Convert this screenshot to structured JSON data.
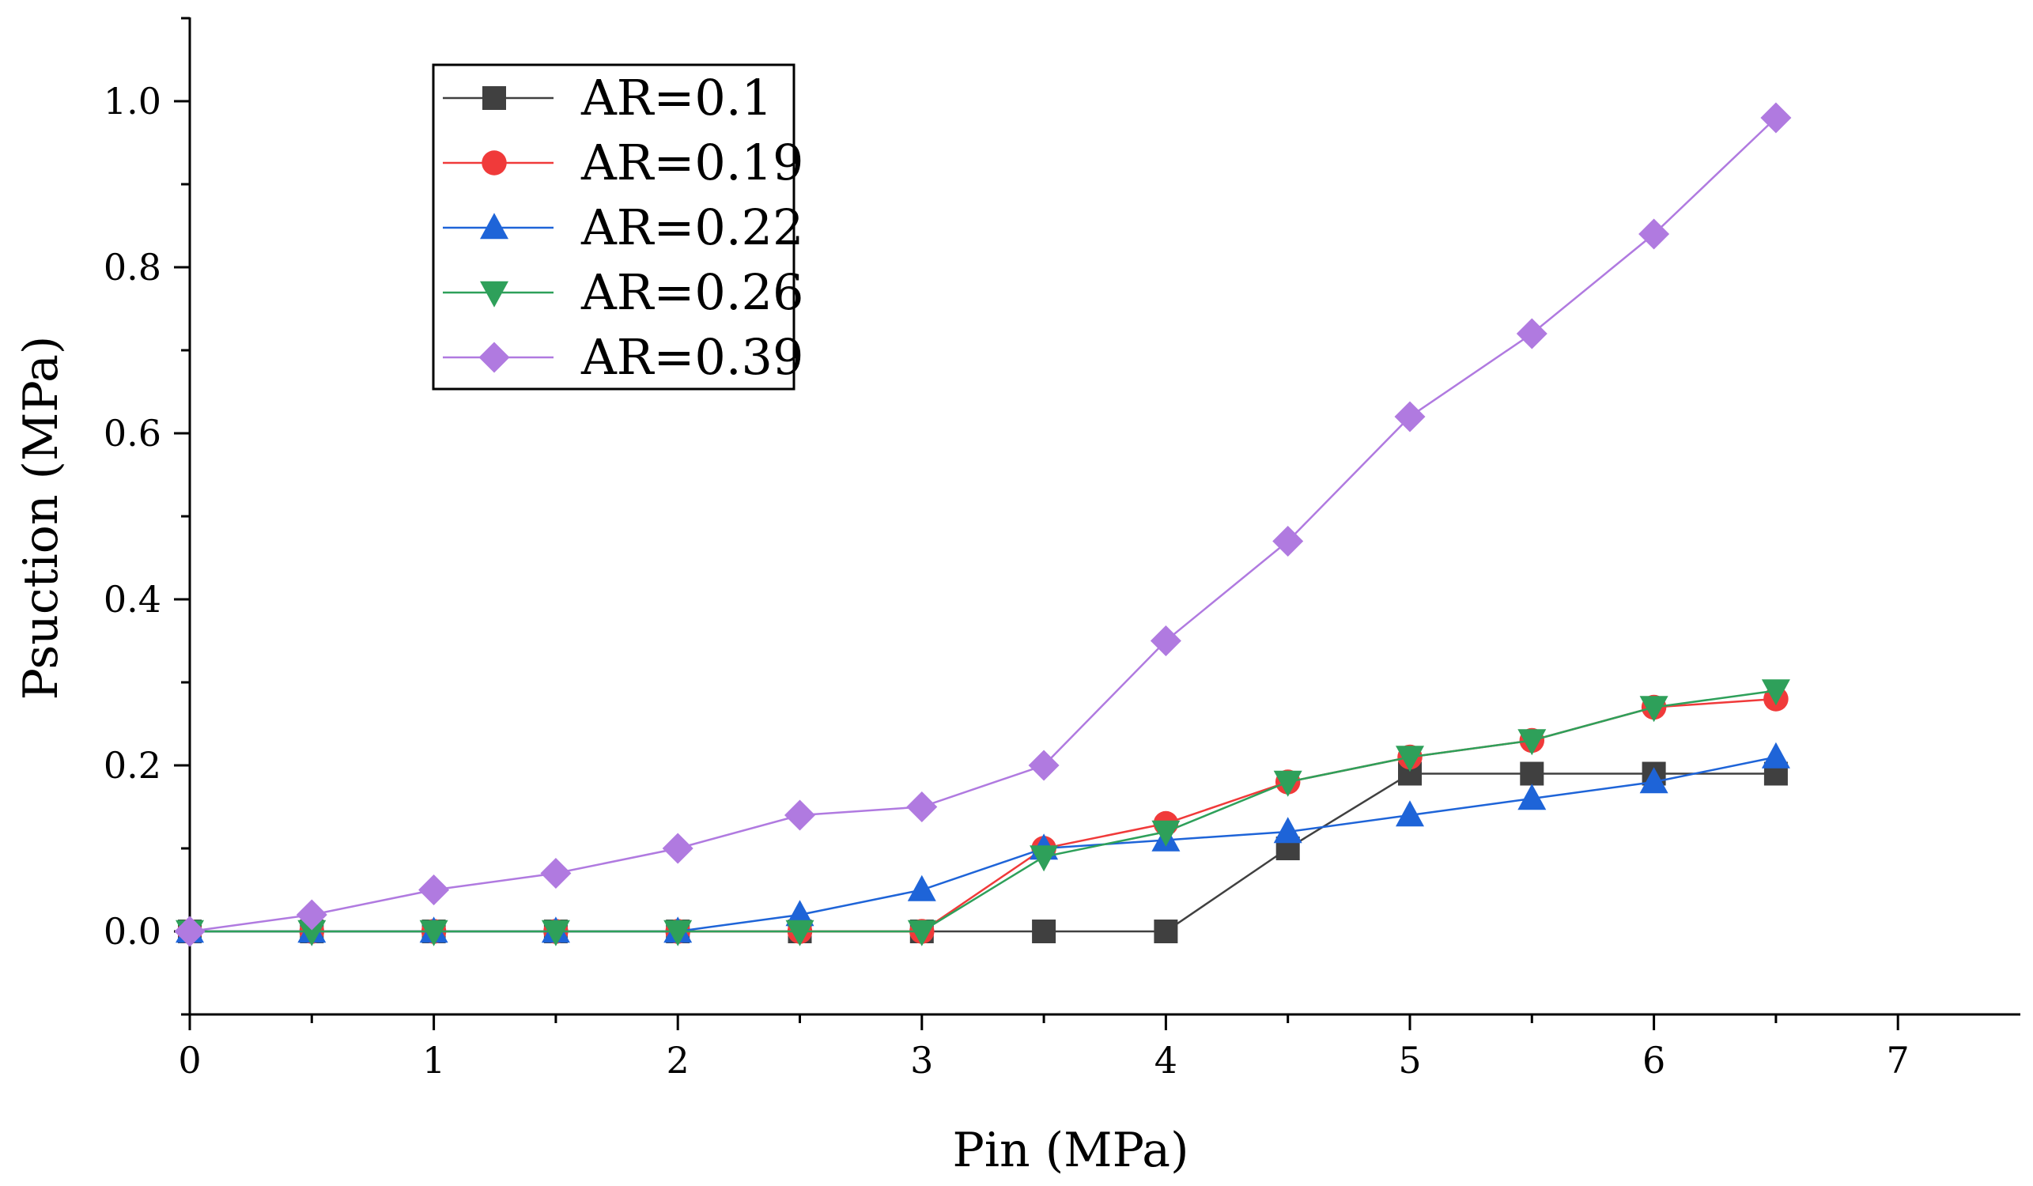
{
  "chart_data": {
    "type": "line",
    "title": "",
    "xlabel": "Pin (MPa)",
    "ylabel": "Psuction (MPa)",
    "xlim": [
      0,
      7.5
    ],
    "ylim": [
      -0.1,
      1.1
    ],
    "x_ticks": [
      0,
      1,
      2,
      3,
      4,
      5,
      6,
      7
    ],
    "x_tick_labels": [
      "0",
      "1",
      "2",
      "3",
      "4",
      "5",
      "6",
      "7"
    ],
    "y_ticks": [
      0.0,
      0.2,
      0.4,
      0.6,
      0.8,
      1.0
    ],
    "y_tick_labels": [
      "0.0",
      "0.2",
      "0.4",
      "0.6",
      "0.8",
      "1.0"
    ],
    "grid": false,
    "legend_position": "top-left",
    "x": [
      0,
      0.5,
      1,
      1.5,
      2,
      2.5,
      3,
      3.5,
      4,
      4.5,
      5,
      5.5,
      6,
      6.5
    ],
    "series": [
      {
        "name": "AR=0.1",
        "color": "#404040",
        "marker": "square",
        "values": [
          0,
          0,
          0,
          0,
          0,
          0,
          0,
          0,
          0,
          0.1,
          0.19,
          0.19,
          0.19,
          0.19
        ]
      },
      {
        "name": "AR=0.19",
        "color": "#f03a3a",
        "marker": "circle",
        "values": [
          0,
          0,
          0,
          0,
          0,
          0,
          0,
          0.1,
          0.13,
          0.18,
          0.21,
          0.23,
          0.27,
          0.28
        ]
      },
      {
        "name": "AR=0.22",
        "color": "#1e64d8",
        "marker": "triangle-up",
        "values": [
          0,
          0,
          0,
          0,
          0,
          0.02,
          0.05,
          0.1,
          0.11,
          0.12,
          0.14,
          0.16,
          0.18,
          0.21
        ]
      },
      {
        "name": "AR=0.26",
        "color": "#2ea05a",
        "marker": "triangle-down",
        "values": [
          0,
          0,
          0,
          0,
          0,
          0,
          0,
          0.09,
          0.12,
          0.18,
          0.21,
          0.23,
          0.27,
          0.29
        ]
      },
      {
        "name": "AR=0.39",
        "color": "#b07ae0",
        "marker": "diamond",
        "values": [
          0,
          0.02,
          0.05,
          0.07,
          0.1,
          0.14,
          0.15,
          0.2,
          0.35,
          0.47,
          0.62,
          0.72,
          0.84,
          0.98
        ]
      }
    ]
  }
}
